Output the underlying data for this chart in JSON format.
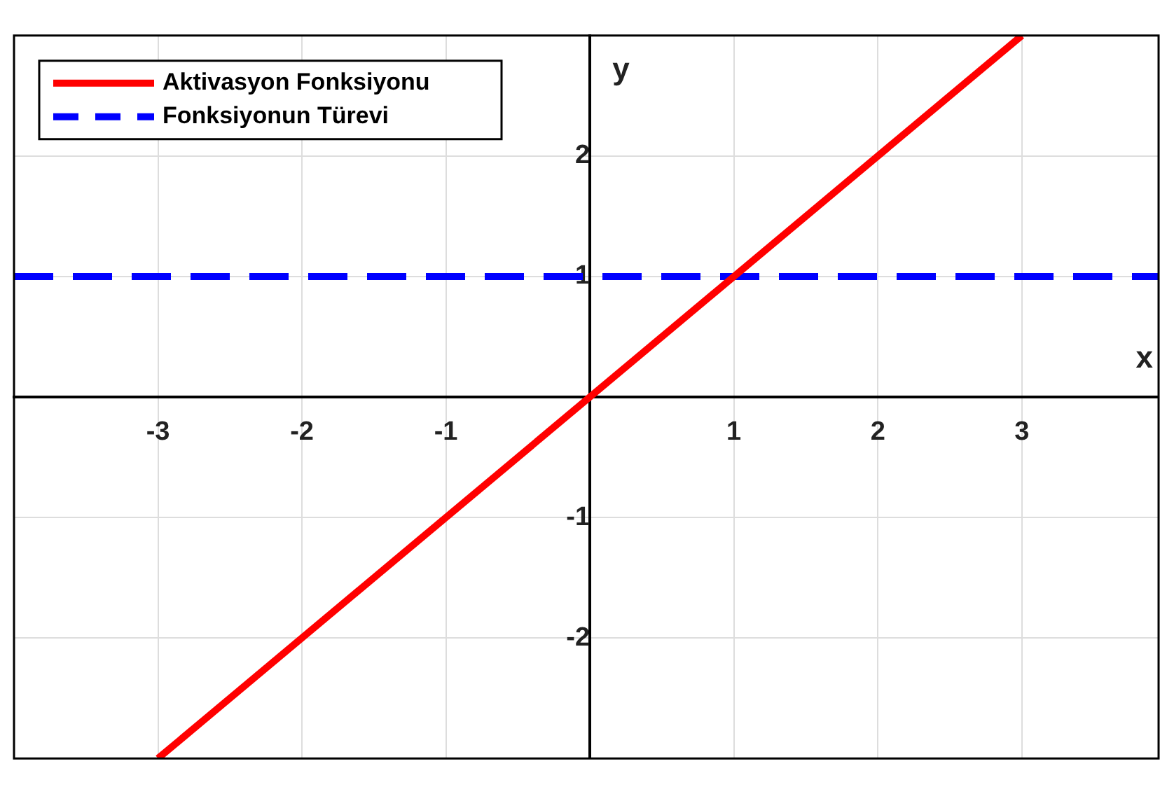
{
  "chart_data": {
    "type": "line",
    "xlabel": "x",
    "ylabel": "y",
    "xlim": [
      -4,
      3.95
    ],
    "ylim": [
      -3,
      3
    ],
    "xticks": [
      -3,
      -2,
      -1,
      1,
      2,
      3
    ],
    "yticks": [
      -2,
      -1,
      1,
      2
    ],
    "grid": true,
    "legend": "top left",
    "series": [
      {
        "name": "Aktivasyon Fonksiyonu",
        "color": "#ff0000",
        "x": [
          -3,
          3
        ],
        "values": [
          -3,
          3
        ],
        "line_style": "solid"
      },
      {
        "name": "Fonksiyonun Türevi",
        "color": "#0000ff",
        "x": [
          -4,
          3.95
        ],
        "values": [
          1,
          1
        ],
        "line_style": "dashed"
      }
    ]
  }
}
